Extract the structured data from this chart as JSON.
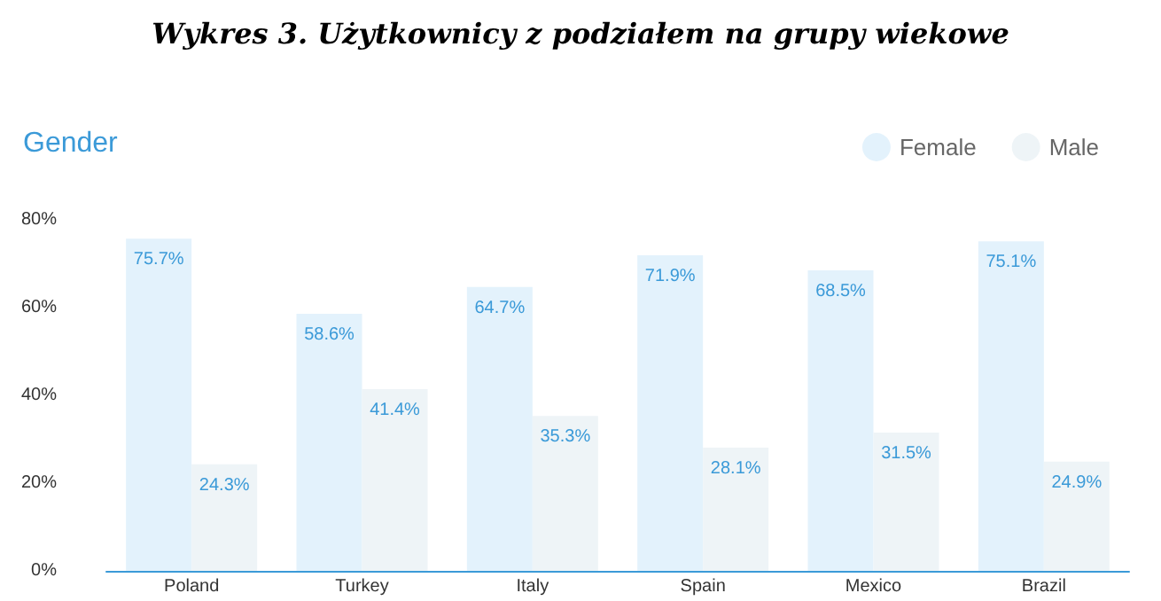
{
  "chart_data": {
    "type": "bar",
    "title": "Wykres 3. Użytkownicy z podziałem na grupy wiekowe",
    "subtitle": "Gender",
    "categories": [
      "Poland",
      "Turkey",
      "Italy",
      "Spain",
      "Mexico",
      "Brazil"
    ],
    "series": [
      {
        "name": "Female",
        "color": "#e3f2fc",
        "values": [
          75.7,
          58.6,
          64.7,
          71.9,
          68.5,
          75.1
        ],
        "value_labels": [
          "75.7%",
          "58.6%",
          "64.7%",
          "71.9%",
          "68.5%",
          "75.1%"
        ]
      },
      {
        "name": "Male",
        "color": "#eef4f7",
        "values": [
          24.3,
          41.4,
          35.3,
          28.1,
          31.5,
          24.9
        ],
        "value_labels": [
          "24.3%",
          "41.4%",
          "35.3%",
          "28.1%",
          "31.5%",
          "24.9%"
        ]
      }
    ],
    "ylim": [
      0,
      80
    ],
    "yticks": [
      {
        "value": 0,
        "label": "0%"
      },
      {
        "value": 20,
        "label": "20%"
      },
      {
        "value": 40,
        "label": "40%"
      },
      {
        "value": 60,
        "label": "60%"
      },
      {
        "value": 80,
        "label": "80%"
      }
    ],
    "grid": false,
    "legend": "top right"
  }
}
